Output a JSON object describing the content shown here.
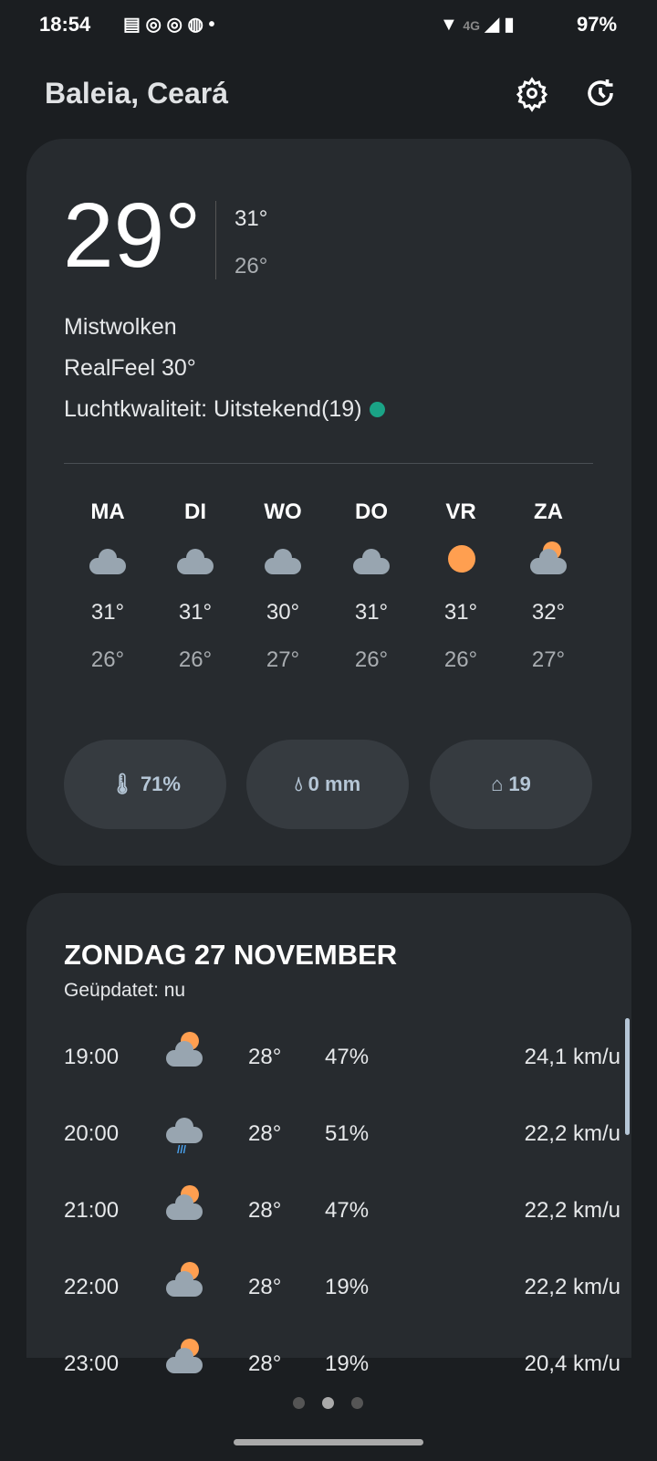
{
  "status_bar": {
    "time": "18:54",
    "battery": "97%",
    "network": "4G"
  },
  "header": {
    "title": "Baleia, Ceará",
    "settings_icon": "gear-icon",
    "refresh_icon": "history-icon"
  },
  "current": {
    "temp": "29°",
    "high": "31°",
    "low": "26°",
    "condition": "Mistwolken",
    "realfeel": "RealFeel 30°",
    "air_quality": "Luchtkwaliteit: Uitstekend(19)",
    "air_quality_color": "#1aa386"
  },
  "forecast": [
    {
      "day": "MA",
      "icon": "cloud",
      "high": "31°",
      "low": "26°"
    },
    {
      "day": "DI",
      "icon": "cloud",
      "high": "31°",
      "low": "26°"
    },
    {
      "day": "WO",
      "icon": "cloud",
      "high": "30°",
      "low": "27°"
    },
    {
      "day": "DO",
      "icon": "cloud",
      "high": "31°",
      "low": "26°"
    },
    {
      "day": "VR",
      "icon": "sun",
      "high": "31°",
      "low": "26°"
    },
    {
      "day": "ZA",
      "icon": "partly-cloudy",
      "high": "32°",
      "low": "27°"
    }
  ],
  "pills": [
    {
      "icon": "humidity-icon",
      "value": "71%"
    },
    {
      "icon": "raindrop-icon",
      "value": "0 mm"
    },
    {
      "icon": "air-quality-icon",
      "value": "19"
    }
  ],
  "hourly": {
    "title": "ZONDAG 27 NOVEMBER",
    "updated": "Geüpdatet: nu",
    "rows": [
      {
        "time": "19:00",
        "icon": "partly-cloudy-night",
        "temp": "28°",
        "precip": "47%",
        "wind": "24,1 km/u"
      },
      {
        "time": "20:00",
        "icon": "rain",
        "temp": "28°",
        "precip": "51%",
        "wind": "22,2 km/u"
      },
      {
        "time": "21:00",
        "icon": "partly-cloudy-night",
        "temp": "28°",
        "precip": "47%",
        "wind": "22,2 km/u"
      },
      {
        "time": "22:00",
        "icon": "partly-cloudy-night",
        "temp": "28°",
        "precip": "19%",
        "wind": "22,2 km/u"
      },
      {
        "time": "23:00",
        "icon": "partly-cloudy-night",
        "temp": "28°",
        "precip": "19%",
        "wind": "20,4 km/u"
      }
    ]
  },
  "pager": {
    "pages": 3,
    "active": 2
  },
  "colors": {
    "accent_sun": "#ff9f50",
    "cloud": "#98a5b0"
  }
}
